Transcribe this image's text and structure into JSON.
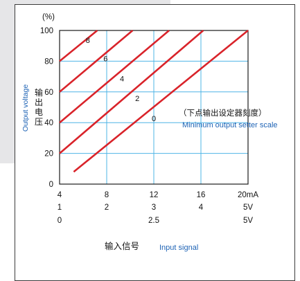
{
  "chart_data": {
    "type": "line",
    "y_unit": "(%)",
    "ylim": [
      0,
      100
    ],
    "y_ticks": [
      "0",
      "20",
      "40",
      "60",
      "80",
      "100"
    ],
    "xlim": [
      4,
      20
    ],
    "x_ticks": [
      4,
      8,
      12,
      16,
      20
    ],
    "x_tick_rows": [
      [
        "4",
        "8",
        "12",
        "16",
        "20mA"
      ],
      [
        "1",
        "2",
        "3",
        "4",
        "5V"
      ],
      [
        "0",
        "",
        "2.5",
        "",
        "5V"
      ]
    ],
    "ylabel_cn": "输出电压",
    "ylabel_en": "Output voltage",
    "xlabel_cn": "输入信号",
    "xlabel_en": "Input signal",
    "annotation_cn": "（下点输出设定器刻度）",
    "annotation_en": "Minimum output setter scale",
    "grid": true,
    "line_color": "#d9232a",
    "grid_color": "#4eb4e6",
    "series": [
      {
        "name": "0",
        "points": [
          [
            5.2,
            8
          ],
          [
            20,
            100
          ]
        ]
      },
      {
        "name": "2",
        "points": [
          [
            4,
            20
          ],
          [
            16.2,
            100
          ]
        ]
      },
      {
        "name": "4",
        "points": [
          [
            4,
            40
          ],
          [
            13.3,
            100
          ]
        ]
      },
      {
        "name": "6",
        "points": [
          [
            4,
            60
          ],
          [
            10.2,
            100
          ]
        ]
      },
      {
        "name": "8",
        "points": [
          [
            4,
            80
          ],
          [
            7.2,
            100
          ]
        ]
      }
    ],
    "series_label_positions": [
      {
        "name": "8",
        "x": 6.4,
        "y": 92
      },
      {
        "name": "6",
        "x": 7.9,
        "y": 80
      },
      {
        "name": "4",
        "x": 9.3,
        "y": 67
      },
      {
        "name": "2",
        "x": 10.6,
        "y": 54
      },
      {
        "name": "0",
        "x": 12.0,
        "y": 41
      }
    ]
  }
}
